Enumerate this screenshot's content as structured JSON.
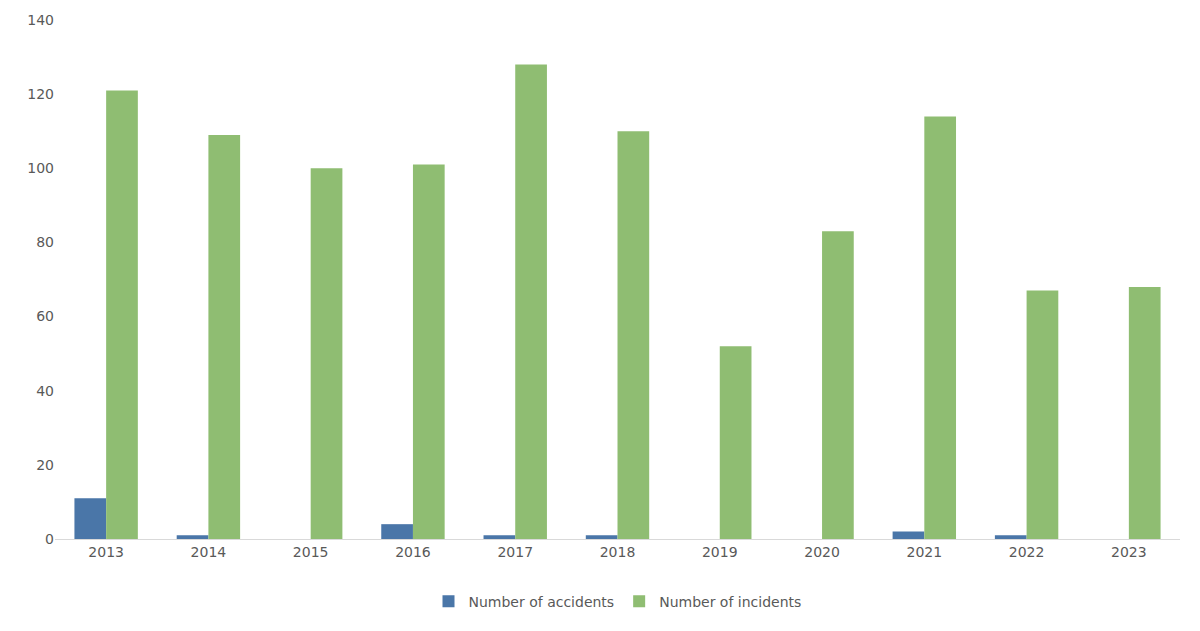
{
  "chart_data": {
    "type": "bar",
    "categories": [
      "2013",
      "2014",
      "2015",
      "2016",
      "2017",
      "2018",
      "2019",
      "2020",
      "2021",
      "2022",
      "2023"
    ],
    "series": [
      {
        "name": "Number of accidents",
        "color": "#4a76a8",
        "values": [
          11,
          1,
          0,
          4,
          1,
          1,
          0,
          0,
          2,
          1,
          0
        ]
      },
      {
        "name": "Number of incidents",
        "color": "#8fbd72",
        "values": [
          121,
          109,
          100,
          101,
          128,
          110,
          52,
          83,
          114,
          67,
          68
        ]
      }
    ],
    "ylim": [
      0,
      140
    ],
    "yticks": [
      0,
      20,
      40,
      60,
      80,
      100,
      120,
      140
    ],
    "grid": false,
    "legend": "bottom"
  }
}
